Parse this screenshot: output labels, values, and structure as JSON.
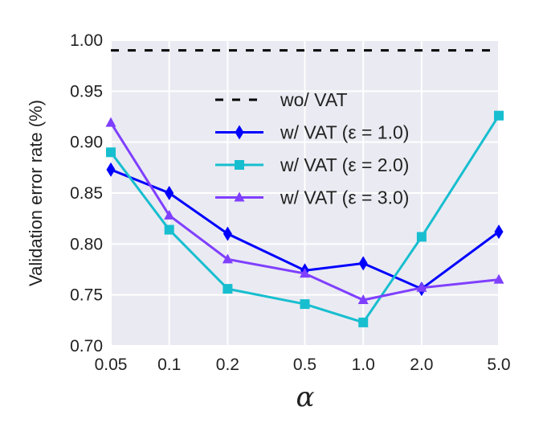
{
  "chart_data": {
    "type": "line",
    "title": "",
    "xlabel": "α",
    "ylabel": "Validation error rate (%)",
    "x_scale": "log",
    "x": [
      0.05,
      0.1,
      0.2,
      0.5,
      1.0,
      2.0,
      5.0
    ],
    "x_tick_labels": [
      "0.05",
      "0.1",
      "0.2",
      "0.5",
      "1.0",
      "2.0",
      "5.0"
    ],
    "ylim": [
      0.7,
      1.0
    ],
    "y_ticks": [
      0.7,
      0.75,
      0.8,
      0.85,
      0.9,
      0.95,
      1.0
    ],
    "y_tick_labels": [
      "0.70",
      "0.75",
      "0.80",
      "0.85",
      "0.90",
      "0.95",
      "1.00"
    ],
    "grid": true,
    "background": "#eaeaf2",
    "legend_placement": "upper-center",
    "baseline": {
      "name": "wo/ VAT",
      "value": 0.99,
      "color": "#000000",
      "style": "dashed"
    },
    "series": [
      {
        "name": "w/ VAT (ε = 1.0)",
        "color": "#0000ff",
        "marker": "diamond",
        "values": [
          0.873,
          0.85,
          0.81,
          0.774,
          0.781,
          0.756,
          0.812
        ]
      },
      {
        "name": "w/ VAT (ε = 2.0)",
        "color": "#17becf",
        "marker": "square",
        "values": [
          0.89,
          0.814,
          0.756,
          0.741,
          0.723,
          0.807,
          0.926
        ]
      },
      {
        "name": "w/ VAT (ε = 3.0)",
        "color": "#7f3fff",
        "marker": "triangle",
        "values": [
          0.919,
          0.828,
          0.785,
          0.771,
          0.745,
          0.757,
          0.765
        ]
      }
    ]
  }
}
